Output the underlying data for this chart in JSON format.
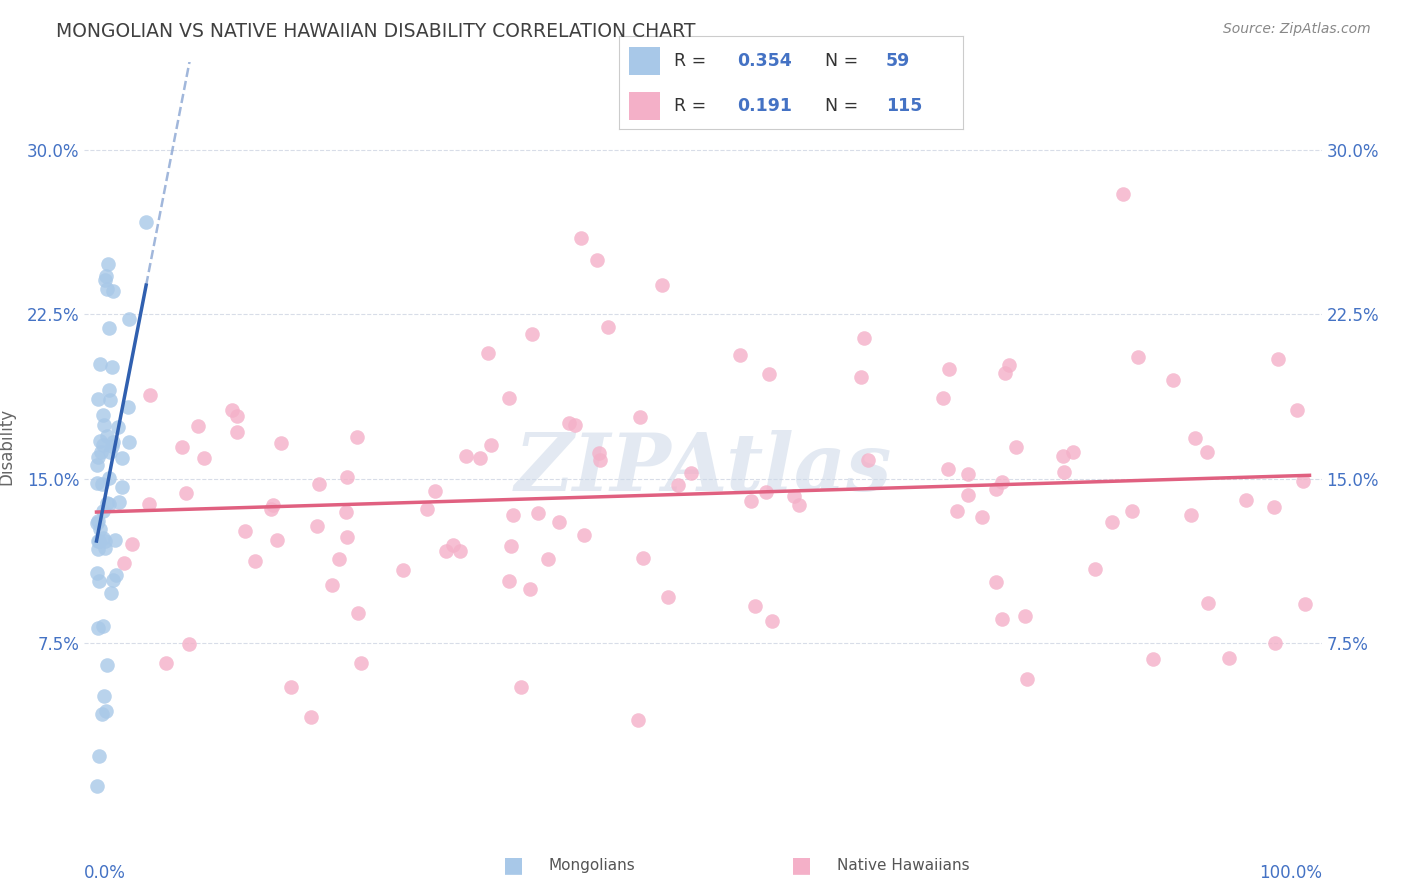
{
  "title": "MONGOLIAN VS NATIVE HAWAIIAN DISABILITY CORRELATION CHART",
  "source": "Source: ZipAtlas.com",
  "ylabel": "Disability",
  "yticks": [
    0.075,
    0.15,
    0.225,
    0.3
  ],
  "ytick_labels": [
    "7.5%",
    "15.0%",
    "22.5%",
    "30.0%"
  ],
  "xlim": [
    -0.01,
    1.01
  ],
  "ylim": [
    -0.01,
    0.34
  ],
  "blue_scatter_color": "#a8c8e8",
  "pink_scatter_color": "#f4b0c8",
  "blue_line_color": "#3060b0",
  "pink_line_color": "#e06080",
  "grid_color": "#d8dde8",
  "background_color": "#ffffff",
  "title_color": "#404040",
  "axis_label_color": "#4472c4",
  "source_color": "#888888",
  "watermark_color": "#ccd8e8",
  "mong_seed": 12345,
  "haw_seed": 67890,
  "n_mong": 59,
  "n_haw": 115
}
